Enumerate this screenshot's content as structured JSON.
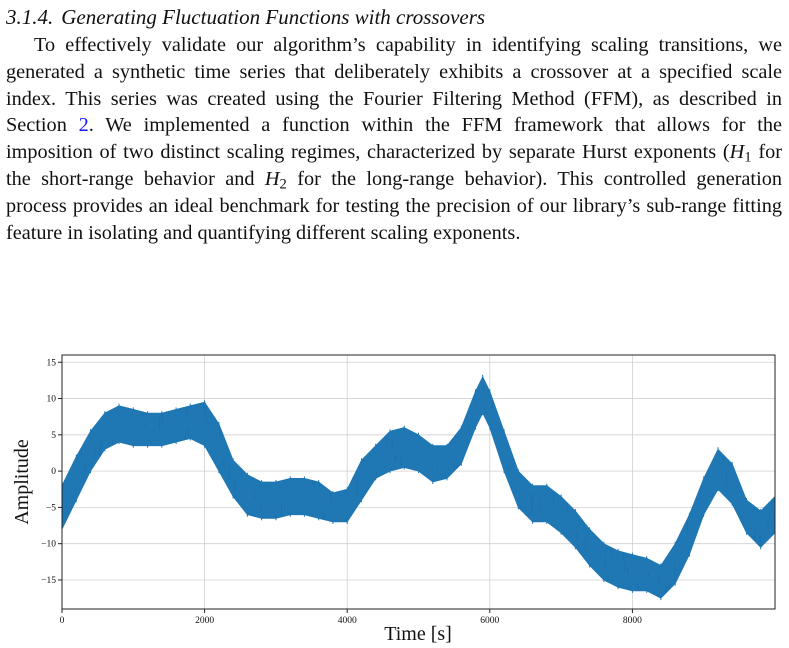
{
  "section": {
    "number": "3.1.4.",
    "title": "Generating Fluctuation Functions with crossovers"
  },
  "paragraph": {
    "part1": "To effectively validate our algorithm’s capability in identifying scaling transitions, we generated a synthetic time series that deliberately exhibits a crossover at a specified scale index. This series was created using the Fourier Filtering Method (FFM), as described in Section ",
    "section_ref": "2",
    "part2": ". We implemented a function within the FFM framework that allows for the imposition of two distinct scaling regimes, characterized by separate Hurst exponents (",
    "h1_base": "H",
    "h1_sub": "1",
    "part3": " for the short-range behavior and ",
    "h2_base": "H",
    "h2_sub": "2",
    "part4": " for the long-range behavior). This controlled generation process provides an ideal benchmark for testing the precision of our library’s sub-range fitting feature in isolating and quantifying different scaling exponents."
  },
  "chart_data": {
    "type": "line",
    "xlabel": "Time [s]",
    "ylabel": "Amplitude",
    "xlim": [
      0,
      10000
    ],
    "ylim": [
      -19,
      16
    ],
    "x_ticks": [
      0,
      2000,
      4000,
      6000,
      8000
    ],
    "x_tick_labels": [
      "0",
      "2000",
      "4000",
      "6000",
      "8000"
    ],
    "y_ticks": [
      15,
      10,
      5,
      0,
      -5,
      -10,
      -15
    ],
    "y_tick_labels": [
      "15",
      "10",
      "5",
      "0",
      "−5",
      "−10",
      "−15"
    ],
    "grid": true,
    "series_color": "#1f77b4",
    "series": [
      {
        "x": [
          0,
          200,
          400,
          600,
          800,
          1000,
          1200,
          1400,
          1600,
          1800,
          2000,
          2200,
          2400,
          2600,
          2800,
          3000,
          3200,
          3400,
          3600,
          3800,
          4000,
          4200,
          4400,
          4600,
          4800,
          5000,
          5200,
          5400,
          5600,
          5800,
          5900,
          6000,
          6200,
          6400,
          6600,
          6800,
          7000,
          7200,
          7400,
          7600,
          7800,
          8000,
          8200,
          8400,
          8600,
          8800,
          9000,
          9200,
          9400,
          9600,
          9800,
          10000
        ],
        "y_upper": [
          -2,
          2,
          5.5,
          8,
          9,
          8.5,
          8,
          8,
          8.5,
          9,
          9.5,
          6.5,
          1.5,
          -0.5,
          -1.5,
          -1.5,
          -1,
          -1,
          -1.5,
          -3,
          -2.5,
          1.5,
          3.5,
          5.5,
          6,
          5,
          3.5,
          3.5,
          6,
          11,
          13,
          11,
          5.5,
          0,
          -2,
          -2,
          -3.5,
          -5.5,
          -8,
          -10,
          -11,
          -11.5,
          -12,
          -13,
          -10,
          -6,
          -1,
          3,
          1,
          -4,
          -5.5,
          -3.5
        ],
        "y_lower": [
          -8,
          -4,
          0,
          3,
          4,
          3.5,
          3.5,
          3.5,
          4,
          4.5,
          3.5,
          0,
          -3.5,
          -6,
          -6.5,
          -6.5,
          -6,
          -6,
          -6.5,
          -7,
          -7,
          -4,
          -1,
          0,
          0.5,
          0,
          -1.5,
          -1,
          1,
          6,
          8,
          6,
          0,
          -5,
          -7,
          -7,
          -8.5,
          -10.5,
          -13,
          -15,
          -16,
          -16.5,
          -16.5,
          -17.5,
          -15.5,
          -11.5,
          -6,
          -2.5,
          -4.5,
          -8.5,
          -10.5,
          -8.5
        ]
      }
    ]
  }
}
